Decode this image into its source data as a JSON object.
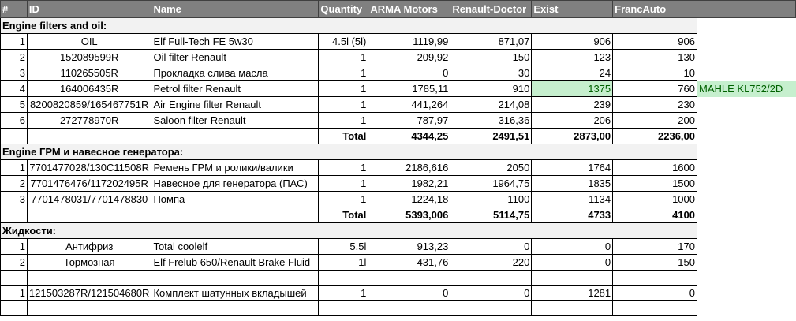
{
  "headers": [
    "#",
    "ID",
    "Name",
    "Quantity",
    "ARMA Motors",
    "Renault-Doctor",
    "Exist",
    "FrancAuto"
  ],
  "sections": [
    {
      "title": "Engine filters and oil:",
      "rows": [
        {
          "n": "1",
          "id": "OIL",
          "name": "Elf Full-Tech FE 5w30",
          "qty": "4.5l (5l)",
          "arma": "1119,99",
          "rd": "871,07",
          "exist": "906",
          "fa": "906"
        },
        {
          "n": "2",
          "id": "152089599R",
          "name": "Oil filter Renault",
          "qty": "1",
          "arma": "209,92",
          "rd": "150",
          "exist": "123",
          "fa": "130"
        },
        {
          "n": "3",
          "id": "110265505R",
          "name": "Прокладка слива масла",
          "qty": "1",
          "arma": "0",
          "rd": "30",
          "exist": "24",
          "fa": "10"
        },
        {
          "n": "4",
          "id": "164006435R",
          "name": "Petrol filter Renault",
          "qty": "1",
          "arma": "1785,11",
          "rd": "910",
          "exist": "1375",
          "fa": "760",
          "note": "MAHLE KL752/2D"
        },
        {
          "n": "5",
          "id": "8200820859/165467751R",
          "name": "Air Engine filter Renault",
          "qty": "1",
          "arma": "441,264",
          "rd": "214,08",
          "exist": "239",
          "fa": "230"
        },
        {
          "n": "6",
          "id": "272778970R",
          "name": "Saloon filter Renault",
          "qty": "1",
          "arma": "787,97",
          "rd": "316,36",
          "exist": "206",
          "fa": "200"
        }
      ],
      "total": {
        "label": "Total",
        "arma": "4344,25",
        "rd": "2491,51",
        "exist": "2873,00",
        "fa": "2236,00"
      }
    },
    {
      "title": "Engine ГРМ и навесное генератора:",
      "rows": [
        {
          "n": "1",
          "id": "7701477028/130C11508R",
          "name": "Ремень ГРМ и ролики/валики",
          "qty": "1",
          "arma": "2186,616",
          "rd": "2050",
          "exist": "1764",
          "fa": "1600"
        },
        {
          "n": "2",
          "id": "7701476476/117202495R",
          "name": "Навесное для генератора (ПАС)",
          "qty": "1",
          "arma": "1982,21",
          "rd": "1964,75",
          "exist": "1835",
          "fa": "1500"
        },
        {
          "n": "3",
          "id": "7701478031/7701478830",
          "name": "Помпа",
          "qty": "1",
          "arma": "1224,18",
          "rd": "1100",
          "exist": "1134",
          "fa": "1000"
        }
      ],
      "total": {
        "label": "Total",
        "arma": "5393,006",
        "rd": "5114,75",
        "exist": "4733",
        "fa": "4100"
      }
    },
    {
      "title": "Жидкости:",
      "rows": [
        {
          "n": "1",
          "id": "Антифриз",
          "name": "Total coolelf",
          "qty": "5.5l",
          "arma": "913,23",
          "rd": "0",
          "exist": "0",
          "fa": "170"
        },
        {
          "n": "2",
          "id": "Тормозная",
          "name": "Elf Frelub 650/Renault Brake Fluid",
          "qty": "1l",
          "arma": "431,76",
          "rd": "220",
          "exist": "0",
          "fa": "150"
        }
      ]
    }
  ],
  "extra_row": {
    "n": "1",
    "id": "121503287R/121504680R",
    "name": "Комплект шатунных вкладышей",
    "qty": "1",
    "arma": "0",
    "rd": "0",
    "exist": "1281",
    "fa": "0"
  }
}
